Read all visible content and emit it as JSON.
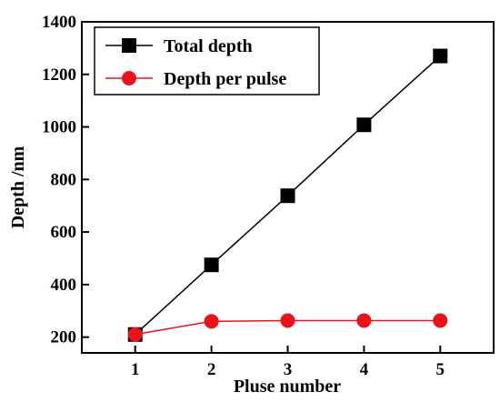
{
  "chart_data": {
    "type": "line",
    "xlabel": "Pluse number",
    "ylabel": "Depth /nm",
    "x": [
      1,
      2,
      3,
      4,
      5
    ],
    "xlim": [
      0.3,
      5.7
    ],
    "ylim": [
      140,
      1400
    ],
    "xticks": [
      1,
      2,
      3,
      4,
      5
    ],
    "yticks": [
      200,
      400,
      600,
      800,
      1000,
      1200,
      1400
    ],
    "grid": false,
    "legend_position": "top-left",
    "series": [
      {
        "name": "Total depth",
        "color": "#000000",
        "marker": "square",
        "values": [
          210,
          475,
          738,
          1008,
          1270
        ]
      },
      {
        "name": "Depth per pulse",
        "color": "#e8141a",
        "marker": "circle",
        "values": [
          210,
          260,
          263,
          263,
          263
        ]
      }
    ]
  }
}
